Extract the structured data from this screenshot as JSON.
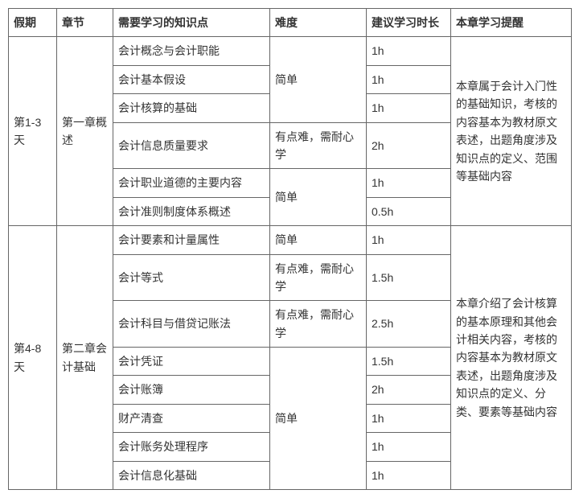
{
  "headers": {
    "vacation": "假期",
    "chapter": "章节",
    "points": "需要学习的知识点",
    "difficulty": "难度",
    "duration": "建议学习时长",
    "reminder": "本章学习提醒"
  },
  "groups": [
    {
      "vacation": "第1-3天",
      "chapter": "第一章概述",
      "reminder": "本章属于会计入门性的基础知识，考核的内容基本为教材原文表述，出题角度涉及知识点的定义、范围等基础内容",
      "rows": [
        {
          "point": "会计概念与会计职能",
          "difficulty": "简单",
          "diff_span": 3,
          "duration": "1h"
        },
        {
          "point": "会计基本假设",
          "duration": "1h"
        },
        {
          "point": "会计核算的基础",
          "duration": "1h"
        },
        {
          "point": "会计信息质量要求",
          "difficulty": "有点难，需耐心学",
          "diff_span": 1,
          "duration": "2h"
        },
        {
          "point": "会计职业道德的主要内容",
          "difficulty": "简单",
          "diff_span": 2,
          "duration": "1h"
        },
        {
          "point": "会计准则制度体系概述",
          "duration": "0.5h"
        }
      ]
    },
    {
      "vacation": "第4-8天",
      "chapter": "第二章会计基础",
      "reminder": "本章介绍了会计核算的基本原理和其他会计相关内容，考核的内容基本为教材原文表述，出题角度涉及知识点的定义、分类、要素等基础内容",
      "rows": [
        {
          "point": "会计要素和计量属性",
          "difficulty": "简单",
          "diff_span": 1,
          "duration": "1h"
        },
        {
          "point": "会计等式",
          "difficulty": "有点难，需耐心学",
          "diff_span": 1,
          "duration": "1.5h"
        },
        {
          "point": "会计科目与借贷记账法",
          "difficulty": "有点难，需耐心学",
          "diff_span": 1,
          "duration": "2.5h"
        },
        {
          "point": "会计凭证",
          "difficulty": "简单",
          "diff_span": 5,
          "duration": "1.5h"
        },
        {
          "point": "会计账簿",
          "duration": "2h"
        },
        {
          "point": "财产清查",
          "duration": "1h"
        },
        {
          "point": "会计账务处理程序",
          "duration": "1h"
        },
        {
          "point": "会计信息化基础",
          "duration": "1h"
        }
      ]
    }
  ]
}
